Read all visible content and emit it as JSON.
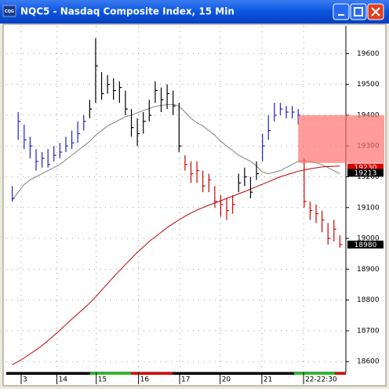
{
  "chart_data": {
    "type": "ohlc",
    "app_icon": "CQG",
    "title": "NQC5 - Nasdaq Composite Index, 15 Min",
    "xlim": [
      -1,
      56
    ],
    "xticks": [
      {
        "value": 1.5,
        "label": "3"
      },
      {
        "value": 7.5,
        "label": "14"
      },
      {
        "value": 14.1,
        "label": "15"
      },
      {
        "value": 21.2,
        "label": "16"
      },
      {
        "value": 28.1,
        "label": "17"
      },
      {
        "value": 34.9,
        "label": "20"
      },
      {
        "value": 41.9,
        "label": "21"
      },
      {
        "value": 48.9,
        "label": "22-22:30"
      }
    ],
    "ylim": [
      18570,
      19690
    ],
    "yticks": [
      18600,
      18700,
      18800,
      18900,
      19000,
      19100,
      19200,
      19300,
      19400,
      19500,
      19600
    ],
    "grid": true,
    "bars": {
      "high": [
        19170,
        19410,
        19370,
        19330,
        19290,
        19280,
        19290,
        19300,
        19310,
        19330,
        19350,
        19380,
        19400,
        19450,
        19650,
        19540,
        19530,
        19520,
        19510,
        19480,
        19420,
        19390,
        19410,
        19450,
        19510,
        19490,
        19500,
        19480,
        19440,
        19270,
        19250,
        19250,
        19220,
        19210,
        19170,
        19140,
        19130,
        19140,
        19210,
        19230,
        19200,
        19250,
        19340,
        19400,
        19440,
        19440,
        19430,
        19430,
        19420,
        19260,
        19120,
        19110,
        19090,
        19050,
        19060,
        19010
      ],
      "low": [
        19120,
        19320,
        19290,
        19260,
        19220,
        19230,
        19230,
        19250,
        19260,
        19280,
        19290,
        19310,
        19350,
        19390,
        19440,
        19450,
        19470,
        19450,
        19440,
        19400,
        19330,
        19300,
        19340,
        19380,
        19440,
        19410,
        19420,
        19400,
        19280,
        19220,
        19180,
        19180,
        19150,
        19150,
        19100,
        19070,
        19060,
        19080,
        19150,
        19170,
        19130,
        19190,
        19250,
        19320,
        19380,
        19400,
        19390,
        19390,
        19370,
        19100,
        19060,
        19050,
        19020,
        18980,
        18990,
        18970
      ],
      "close": [
        19130,
        19380,
        19320,
        19300,
        19250,
        19260,
        19240,
        19270,
        19280,
        19300,
        19310,
        19340,
        19380,
        19420,
        19560,
        19470,
        19500,
        19480,
        19490,
        19420,
        19360,
        19340,
        19380,
        19400,
        19480,
        19450,
        19470,
        19430,
        19300,
        19240,
        19210,
        19220,
        19170,
        19190,
        19120,
        19110,
        19090,
        19110,
        19180,
        19200,
        19150,
        19210,
        19300,
        19350,
        19400,
        19420,
        19410,
        19410,
        19400,
        19120,
        19090,
        19080,
        19060,
        19000,
        19030,
        18980
      ],
      "colors": [
        "#2020d0",
        "#2020d0",
        "#2020d0",
        "#2020d0",
        "#2020d0",
        "#2020d0",
        "#2020d0",
        "#2020d0",
        "#2020d0",
        "#2020d0",
        "#2020d0",
        "#2020d0",
        "#2020d0",
        "#000000",
        "#000000",
        "#000000",
        "#000000",
        "#000000",
        "#000000",
        "#000000",
        "#000000",
        "#000000",
        "#000000",
        "#000000",
        "#000000",
        "#000000",
        "#000000",
        "#000000",
        "#000000",
        "#d00000",
        "#d00000",
        "#d00000",
        "#d00000",
        "#d00000",
        "#d00000",
        "#d00000",
        "#d00000",
        "#d00000",
        "#000000",
        "#000000",
        "#000000",
        "#000000",
        "#2020d0",
        "#2020d0",
        "#2020d0",
        "#2020d0",
        "#2020d0",
        "#2020d0",
        "#2020d0",
        "#d00000",
        "#d00000",
        "#d00000",
        "#d00000",
        "#d00000",
        "#d00000",
        "#d00000"
      ]
    },
    "series": [
      {
        "color": "#808080",
        "values": [
          19124,
          19150,
          19175,
          19190,
          19200,
          19210,
          19220,
          19230,
          19240,
          19255,
          19270,
          19285,
          19300,
          19315,
          19335,
          19350,
          19365,
          19375,
          19385,
          19395,
          19400,
          19408,
          19415,
          19422,
          19428,
          19432,
          19434,
          19435,
          19430,
          19410,
          19390,
          19375,
          19365,
          19350,
          19335,
          19315,
          19300,
          19285,
          19270,
          19260,
          19250,
          19235,
          19215,
          19210,
          19215,
          19220,
          19230,
          19240,
          19250,
          19252,
          19250,
          19245,
          19240,
          19230,
          19220,
          19210
        ]
      },
      {
        "color": "#c00000",
        "values": [
          18590,
          18600,
          18612,
          18625,
          18638,
          18652,
          18668,
          18685,
          18702,
          18720,
          18738,
          18755,
          18772,
          18790,
          18810,
          18832,
          18853,
          18875,
          18895,
          18915,
          18935,
          18955,
          18972,
          18990,
          19005,
          19020,
          19035,
          19048,
          19060,
          19072,
          19082,
          19092,
          19100,
          19108,
          19115,
          19122,
          19130,
          19137,
          19145,
          19152,
          19160,
          19168,
          19176,
          19184,
          19192,
          19200,
          19206,
          19212,
          19218,
          19222,
          19226,
          19229,
          19232,
          19233,
          19234,
          19235
        ]
      }
    ],
    "zone": {
      "start": 48,
      "high": 19400,
      "low": 19245,
      "color": "#ff7070"
    },
    "price_markers": [
      {
        "value": 19230,
        "color": "#e00000"
      },
      {
        "value": 19213,
        "color": "#000000"
      },
      {
        "value": 18980,
        "color": "#000000"
      }
    ]
  }
}
